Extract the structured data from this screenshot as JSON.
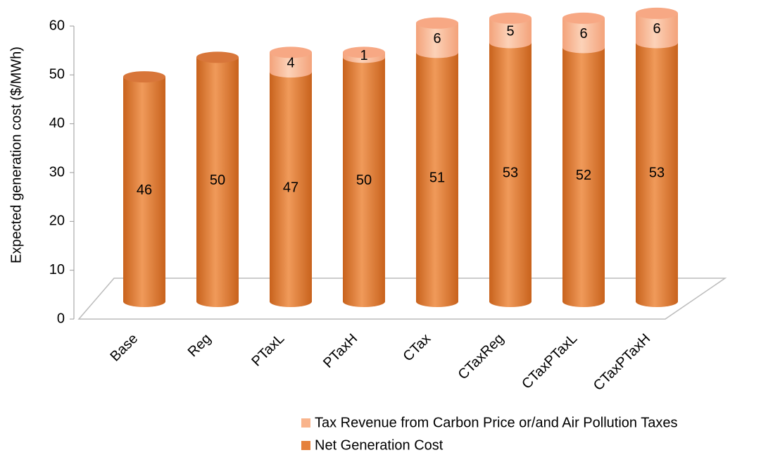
{
  "chart_data": {
    "type": "stacked_bar",
    "y_label": "Expected generation cost ($/MWh)",
    "categories": [
      "Base",
      "Reg",
      "PTaxL",
      "PTaxH",
      "CTax",
      "CTaxReg",
      "CTaxPTaxL",
      "CTaxPTaxH"
    ],
    "series": [
      {
        "name": "Net Generation Cost",
        "color": "#e5813c",
        "values": [
          46,
          50,
          47,
          50,
          51,
          53,
          52,
          53
        ]
      },
      {
        "name": "Tax Revenue from Carbon Price or/and Air Pollution Taxes",
        "color": "#f9b48c",
        "values": [
          null,
          null,
          4,
          1,
          6,
          5,
          6,
          6
        ]
      }
    ],
    "ylim": [
      0,
      60
    ],
    "yticks": [
      0,
      10,
      20,
      30,
      40,
      50,
      60
    ],
    "grid": false
  }
}
